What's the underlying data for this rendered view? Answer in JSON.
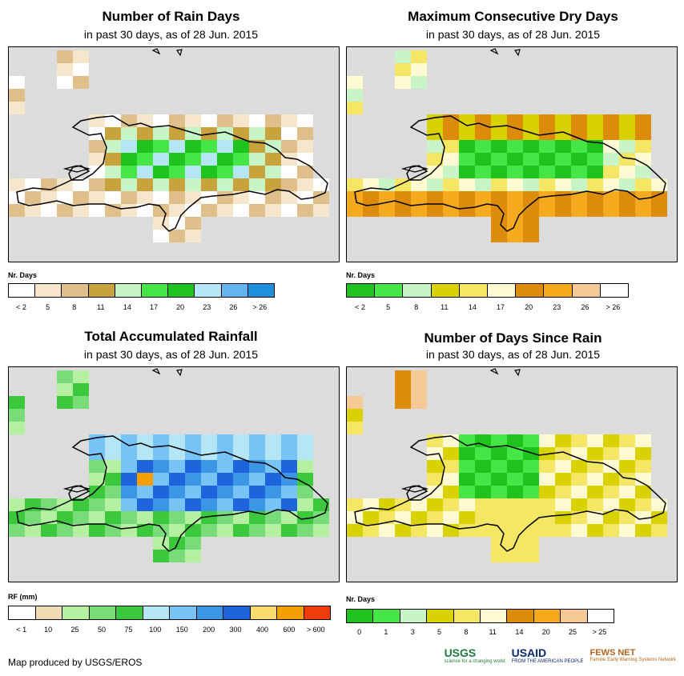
{
  "panels": [
    {
      "title": "Number of Rain Days",
      "subtitle": "in past 30 days, as of 28 Jun. 2015",
      "legend_title": "Nr. Days",
      "legend_colors": [
        "#ffffff",
        "#f5e6cc",
        "#e0c08a",
        "#c8a23c",
        "#c8f5c8",
        "#46e646",
        "#1ec31e",
        "#b4e6f5",
        "#64b4f0",
        "#1e90dc"
      ],
      "legend_ticks": [
        "< 2",
        "5",
        "8",
        "11",
        "14",
        "17",
        "20",
        "23",
        "26",
        "> 26"
      ]
    },
    {
      "title": "Maximum Consecutive Dry Days",
      "subtitle": "in past 30 days, as of 28 Jun. 2015",
      "legend_title": "Nr. Days",
      "legend_colors": [
        "#1ec31e",
        "#46e646",
        "#c8f5c8",
        "#d7d200",
        "#f5e664",
        "#fffad2",
        "#dc8c0a",
        "#f5aa1e",
        "#f5c896",
        "#ffffff"
      ],
      "legend_ticks": [
        "< 2",
        "5",
        "8",
        "11",
        "14",
        "17",
        "20",
        "23",
        "26",
        "> 26"
      ]
    },
    {
      "title": "Total Accumulated Rainfall",
      "subtitle": "in past 30 days, as of 28 Jun. 2015",
      "legend_title": "RF (mm)",
      "legend_colors": [
        "#ffffff",
        "#f0dcb4",
        "#b4f0a0",
        "#78dc78",
        "#3cc83c",
        "#b4e6f5",
        "#78c3f5",
        "#3c96e6",
        "#1e64dc",
        "#fadc6e",
        "#f5a000",
        "#f03c0a"
      ],
      "legend_ticks": [
        "< 1",
        "10",
        "25",
        "50",
        "75",
        "100",
        "150",
        "200",
        "300",
        "400",
        "600",
        "> 600"
      ]
    },
    {
      "title": "Number of Days Since Rain",
      "subtitle": "in past 30 days, as of 28 Jun. 2015",
      "legend_title": "Nr. Days",
      "legend_colors": [
        "#1ec31e",
        "#46e646",
        "#c8f5c8",
        "#d7d200",
        "#f5e664",
        "#fffad2",
        "#dc8c0a",
        "#f5aa1e",
        "#f5c896",
        "#ffffff"
      ],
      "legend_ticks": [
        "0",
        "1",
        "3",
        "5",
        "8",
        "11",
        "14",
        "20",
        "25",
        "> 25"
      ]
    }
  ],
  "credit": "Map produced by USGS/EROS",
  "logos": {
    "usgs": "USGS",
    "usgs_tag": "science for a changing world",
    "usaid": "USAID",
    "usaid_tag": "FROM THE AMERICAN PEOPLE",
    "fews": "FEWS NET",
    "fews_tag": "Famine Early Warning Systems Network"
  }
}
